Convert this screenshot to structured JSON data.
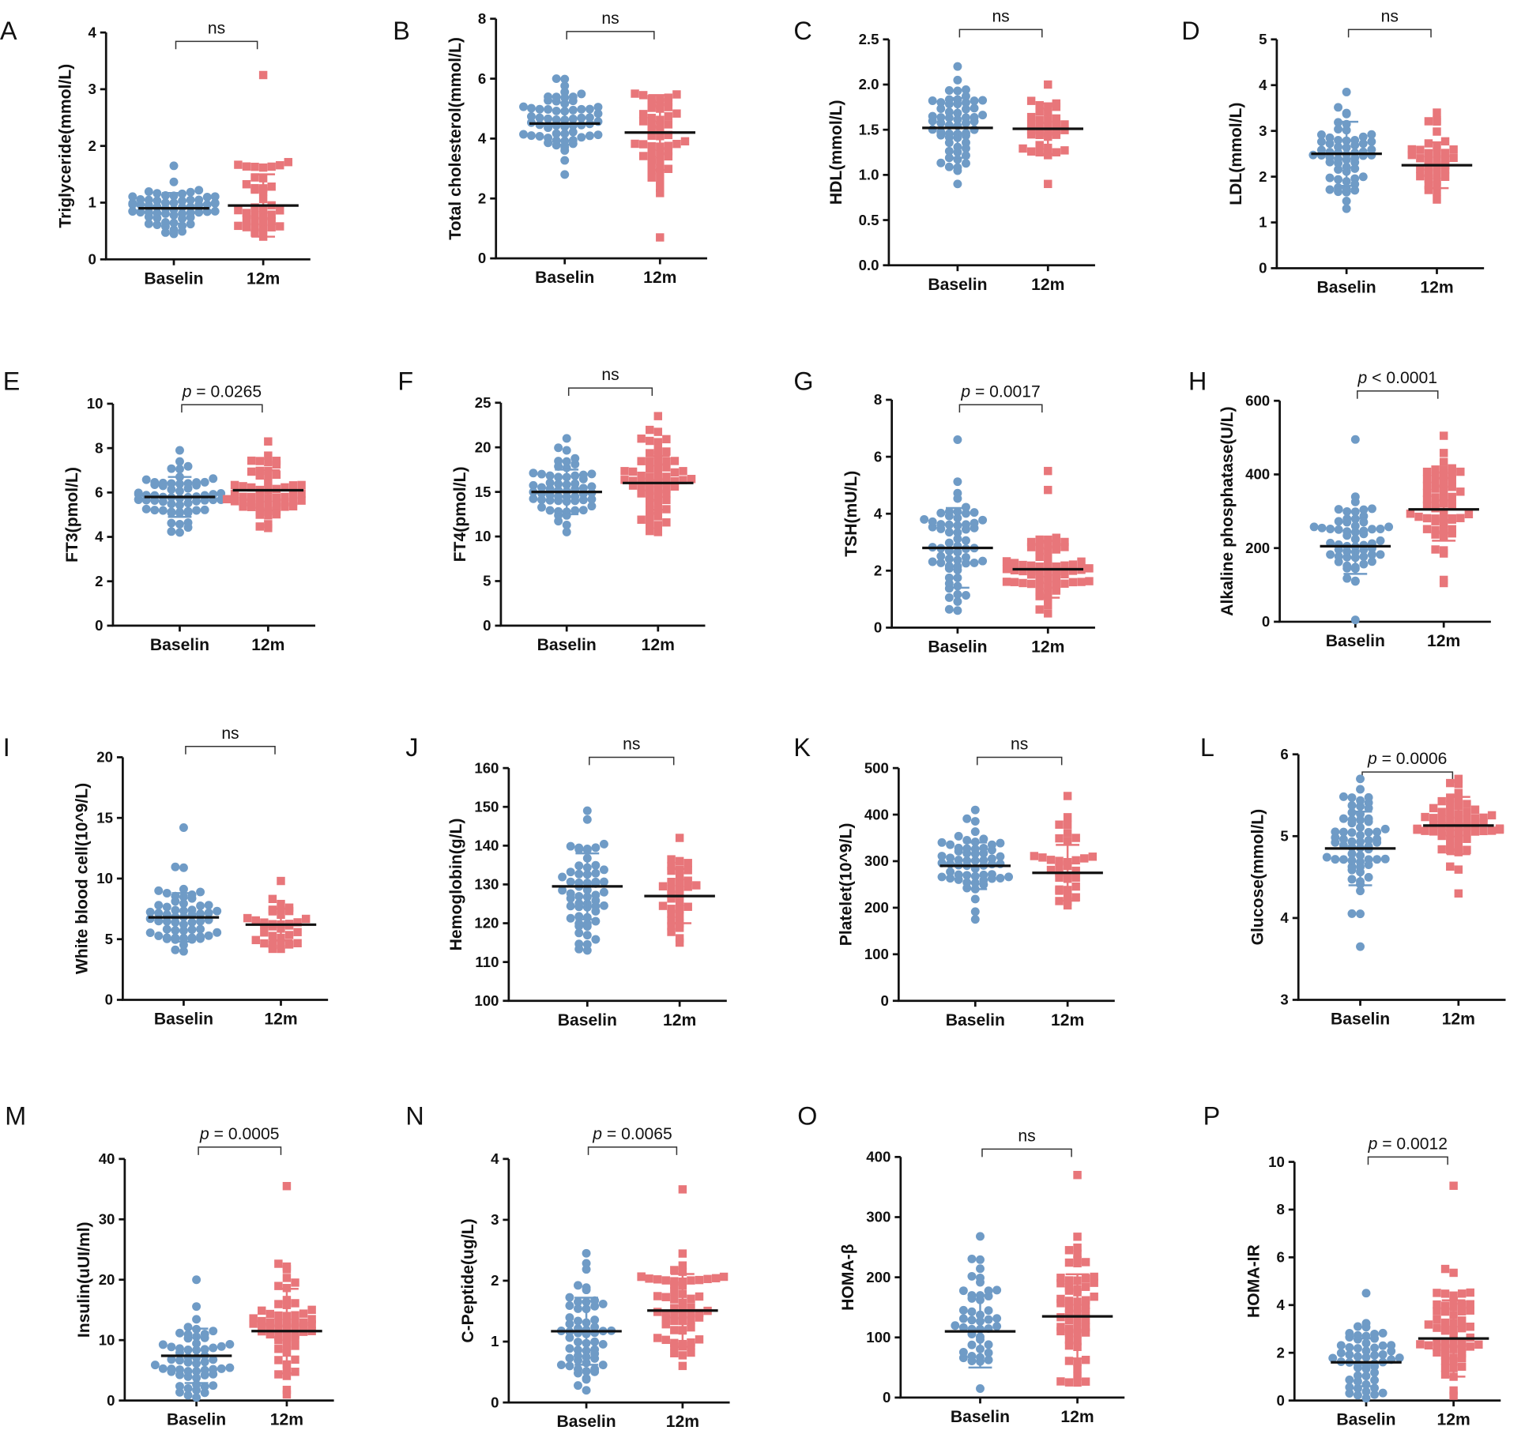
{
  "colors": {
    "baseline": "#6f9bc6",
    "followup": "#e8767a",
    "mean": "#111111"
  },
  "chart_data": [
    {
      "type": "scatter",
      "panel": "A",
      "ylabel": "Triglyceride(mmol/L)",
      "ylim": [
        0,
        4
      ],
      "ystep": 1,
      "decimals": 0,
      "categories": [
        "Baselin",
        "12m"
      ],
      "significance": "ns",
      "series": [
        {
          "name": "Baselin",
          "n": 60,
          "mean": 0.9,
          "sd": 0.27,
          "min": 0.45,
          "max": 1.65
        },
        {
          "name": "12m",
          "n": 38,
          "mean": 0.95,
          "sd": 0.55,
          "min": 0.4,
          "max": 3.25
        }
      ]
    },
    {
      "type": "scatter",
      "panel": "B",
      "ylabel": "Total cholesterol(mmol/L)",
      "ylim": [
        0,
        8
      ],
      "ystep": 2,
      "decimals": 0,
      "categories": [
        "Baselin",
        "12m"
      ],
      "significance": "ns",
      "series": [
        {
          "name": "Baselin",
          "n": 62,
          "mean": 4.5,
          "sd": 0.7,
          "min": 2.8,
          "max": 6.0
        },
        {
          "name": "12m",
          "n": 50,
          "mean": 4.2,
          "sd": 1.25,
          "min": 0.7,
          "max": 5.5
        }
      ]
    },
    {
      "type": "scatter",
      "panel": "C",
      "ylabel": "HDL(mmol/L)",
      "ylim": [
        0,
        2.5
      ],
      "ystep": 0.5,
      "decimals": 1,
      "categories": [
        "Baselin",
        "12m"
      ],
      "significance": "ns",
      "series": [
        {
          "name": "Baselin",
          "n": 58,
          "mean": 1.52,
          "sd": 0.33,
          "min": 0.9,
          "max": 2.2
        },
        {
          "name": "12m",
          "n": 36,
          "mean": 1.51,
          "sd": 0.28,
          "min": 0.9,
          "max": 2.0
        }
      ]
    },
    {
      "type": "scatter",
      "panel": "D",
      "ylabel": "LDL(mmol/L)",
      "ylim": [
        0,
        5
      ],
      "ystep": 1,
      "decimals": 0,
      "categories": [
        "Baselin",
        "12m"
      ],
      "significance": "ns",
      "series": [
        {
          "name": "Baselin",
          "n": 58,
          "mean": 2.5,
          "sd": 0.7,
          "min": 1.3,
          "max": 3.85
        },
        {
          "name": "12m",
          "n": 36,
          "mean": 2.25,
          "sd": 0.5,
          "min": 1.5,
          "max": 3.4
        }
      ]
    },
    {
      "type": "scatter",
      "panel": "E",
      "ylabel": "FT3(pmol/L)",
      "ylim": [
        0,
        10
      ],
      "ystep": 2,
      "decimals": 0,
      "categories": [
        "Baselin",
        "12m"
      ],
      "significance": "p = 0.0265",
      "series": [
        {
          "name": "Baselin",
          "n": 62,
          "mean": 5.8,
          "sd": 0.9,
          "min": 4.2,
          "max": 7.9
        },
        {
          "name": "12m",
          "n": 55,
          "mean": 6.1,
          "sd": 0.9,
          "min": 4.4,
          "max": 8.3
        }
      ]
    },
    {
      "type": "scatter",
      "panel": "F",
      "ylabel": "FT4(pmol/L)",
      "ylim": [
        0,
        25
      ],
      "ystep": 5,
      "decimals": 0,
      "categories": [
        "Baselin",
        "12m"
      ],
      "significance": "ns",
      "series": [
        {
          "name": "Baselin",
          "n": 58,
          "mean": 15,
          "sd": 2.5,
          "min": 10.5,
          "max": 21
        },
        {
          "name": "12m",
          "n": 60,
          "mean": 16,
          "sd": 3,
          "min": 10.5,
          "max": 23.5
        }
      ]
    },
    {
      "type": "scatter",
      "panel": "G",
      "ylabel": "TSH(mU/L)",
      "ylim": [
        0,
        8
      ],
      "ystep": 2,
      "decimals": 0,
      "categories": [
        "Baselin",
        "12m"
      ],
      "significance": "p = 0.0017",
      "series": [
        {
          "name": "Baselin",
          "n": 60,
          "mean": 2.8,
          "sd": 1.4,
          "min": 0.6,
          "max": 6.6
        },
        {
          "name": "12m",
          "n": 62,
          "mean": 2.05,
          "sd": 1.0,
          "min": 0.5,
          "max": 5.5
        }
      ]
    },
    {
      "type": "scatter",
      "panel": "H",
      "ylabel": "Alkaline phosphatase(U/L)",
      "ylim": [
        0,
        600
      ],
      "ystep": 200,
      "decimals": 0,
      "categories": [
        "Baselin",
        "12m"
      ],
      "significance": "p < 0.0001",
      "series": [
        {
          "name": "Baselin",
          "n": 58,
          "mean": 205,
          "sd": 75,
          "min": 5,
          "max": 495
        },
        {
          "name": "12m",
          "n": 55,
          "mean": 305,
          "sd": 85,
          "min": 105,
          "max": 505
        }
      ]
    },
    {
      "type": "scatter",
      "panel": "I",
      "ylabel": "White blood cell(10^9/L)",
      "ylim": [
        0,
        20
      ],
      "ystep": 5,
      "decimals": 0,
      "categories": [
        "Baselin",
        "12m"
      ],
      "significance": "ns",
      "series": [
        {
          "name": "Baselin",
          "n": 58,
          "mean": 6.8,
          "sd": 2.0,
          "min": 4.0,
          "max": 14.2
        },
        {
          "name": "12m",
          "n": 34,
          "mean": 6.2,
          "sd": 1.3,
          "min": 4.2,
          "max": 9.8
        }
      ]
    },
    {
      "type": "scatter",
      "panel": "J",
      "ylabel": "Hemoglobin(g/L)",
      "ylim": [
        100,
        160
      ],
      "ystep": 10,
      "decimals": 0,
      "categories": [
        "Baselin",
        "12m"
      ],
      "significance": "ns",
      "series": [
        {
          "name": "Baselin",
          "n": 58,
          "mean": 129.5,
          "sd": 8.5,
          "min": 113,
          "max": 149
        },
        {
          "name": "12m",
          "n": 34,
          "mean": 127,
          "sd": 7,
          "min": 115,
          "max": 142
        }
      ]
    },
    {
      "type": "scatter",
      "panel": "K",
      "ylabel": "Platelet(10^9/L)",
      "ylim": [
        0,
        500
      ],
      "ystep": 100,
      "decimals": 0,
      "categories": [
        "Baselin",
        "12m"
      ],
      "significance": "ns",
      "series": [
        {
          "name": "Baselin",
          "n": 58,
          "mean": 290,
          "sd": 50,
          "min": 175,
          "max": 410
        },
        {
          "name": "12m",
          "n": 34,
          "mean": 275,
          "sd": 60,
          "min": 205,
          "max": 440
        }
      ]
    },
    {
      "type": "scatter",
      "panel": "L",
      "ylabel": "Glucose(mmol/L)",
      "ylim": [
        3,
        6
      ],
      "ystep": 1,
      "decimals": 0,
      "categories": [
        "Baselin",
        "12m"
      ],
      "significance": "p = 0.0006",
      "series": [
        {
          "name": "Baselin",
          "n": 62,
          "mean": 4.85,
          "sd": 0.45,
          "min": 3.65,
          "max": 5.7
        },
        {
          "name": "12m",
          "n": 58,
          "mean": 5.13,
          "sd": 0.35,
          "min": 4.3,
          "max": 5.7
        }
      ]
    },
    {
      "type": "scatter",
      "panel": "M",
      "ylabel": "Insulin(uUI/ml)",
      "ylim": [
        0,
        40
      ],
      "ystep": 10,
      "decimals": 0,
      "categories": [
        "Baselin",
        "12m"
      ],
      "significance": "p = 0.0005",
      "series": [
        {
          "name": "Baselin",
          "n": 58,
          "mean": 7.4,
          "sd": 4.5,
          "min": 0.5,
          "max": 20
        },
        {
          "name": "12m",
          "n": 58,
          "mean": 11.5,
          "sd": 7,
          "min": 1,
          "max": 35.5
        }
      ]
    },
    {
      "type": "scatter",
      "panel": "N",
      "ylabel": "C-Peptide(ug/L)",
      "ylim": [
        0,
        4
      ],
      "ystep": 1,
      "decimals": 0,
      "categories": [
        "Baselin",
        "12m"
      ],
      "significance": "p = 0.0065",
      "series": [
        {
          "name": "Baselin",
          "n": 58,
          "mean": 1.17,
          "sd": 0.55,
          "min": 0.2,
          "max": 2.45
        },
        {
          "name": "12m",
          "n": 60,
          "mean": 1.51,
          "sd": 0.6,
          "min": 0.6,
          "max": 3.5
        }
      ]
    },
    {
      "type": "scatter",
      "panel": "O",
      "ylabel": "HOMA-β",
      "ylim": [
        0,
        400
      ],
      "ystep": 100,
      "decimals": 0,
      "categories": [
        "Baselin",
        "12m"
      ],
      "significance": "ns",
      "series": [
        {
          "name": "Baselin",
          "n": 45,
          "mean": 110,
          "sd": 60,
          "min": 15,
          "max": 268
        },
        {
          "name": "12m",
          "n": 58,
          "mean": 135,
          "sd": 70,
          "min": 25,
          "max": 370
        }
      ]
    },
    {
      "type": "scatter",
      "panel": "P",
      "ylabel": "HOMA-IR",
      "ylim": [
        0,
        10
      ],
      "ystep": 2,
      "decimals": 0,
      "categories": [
        "Baselin",
        "12m"
      ],
      "significance": "p = 0.0012",
      "series": [
        {
          "name": "Baselin",
          "n": 55,
          "mean": 1.6,
          "sd": 1.0,
          "min": 0.1,
          "max": 4.5
        },
        {
          "name": "12m",
          "n": 58,
          "mean": 2.6,
          "sd": 1.6,
          "min": 0.2,
          "max": 9.0
        }
      ]
    }
  ]
}
